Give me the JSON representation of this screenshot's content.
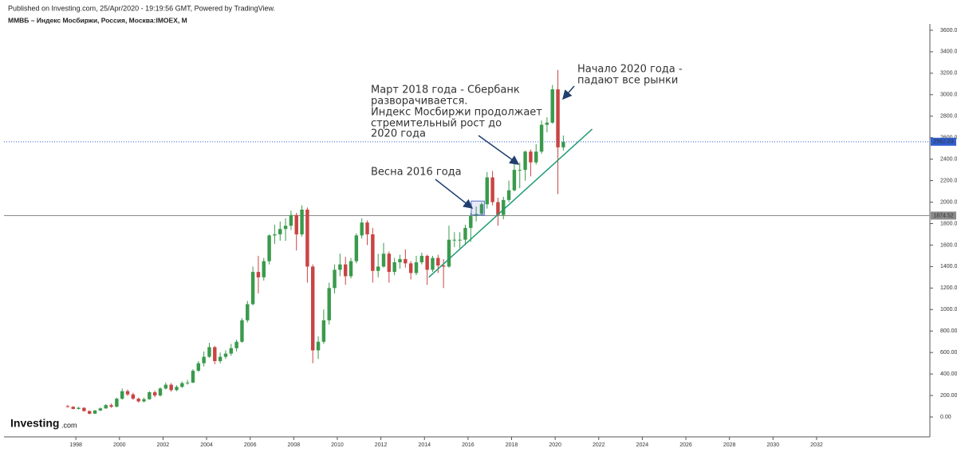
{
  "chart_data": {
    "type": "candlestick",
    "source": "Published on Investing.com, 25/Apr/2020 - 19:19:56 GMT, Powered by TradingView.",
    "title": "ММВБ – Индекс Мосбиржи, Россия, Москва:IMOEX, M",
    "logo": {
      "name": "Investing",
      "suffix": ".com"
    },
    "up_color": "#3a9a4c",
    "down_color": "#c94444",
    "xlim": [
      1994.7,
      2037.2
    ],
    "ylim": [
      -163,
      3659
    ],
    "xticks": [
      1998,
      2000,
      2002,
      2004,
      2006,
      2008,
      2010,
      2012,
      2014,
      2016,
      2018,
      2020,
      2022,
      2024,
      2026,
      2028,
      2030,
      2032
    ],
    "yticks": [
      {
        "value": 0,
        "label": "0.00"
      },
      {
        "value": 200,
        "label": "200.00"
      },
      {
        "value": 400,
        "label": "400.00"
      },
      {
        "value": 600,
        "label": "600.00"
      },
      {
        "value": 800,
        "label": "800.00"
      },
      {
        "value": 1000,
        "label": "1000.00"
      },
      {
        "value": 1200,
        "label": "1200.00"
      },
      {
        "value": 1400,
        "label": "1400.00"
      },
      {
        "value": 1600,
        "label": "1600.00"
      },
      {
        "value": 1800,
        "label": "1800.00"
      },
      {
        "value": 2000,
        "label": "2000.00"
      },
      {
        "value": 2200,
        "label": "2200.00"
      },
      {
        "value": 2400,
        "label": "2400.00"
      },
      {
        "value": 2600,
        "label": "2600.00"
      },
      {
        "value": 2800,
        "label": "2800.00"
      },
      {
        "value": 3000,
        "label": "3000.00"
      },
      {
        "value": 3200,
        "label": "3200.00"
      },
      {
        "value": 3400,
        "label": "3400.00"
      },
      {
        "value": 3600,
        "label": "3600.00"
      }
    ],
    "x": [
      1997.625,
      1997.875,
      1998.125,
      1998.375,
      1998.625,
      1998.875,
      1999.125,
      1999.375,
      1999.625,
      1999.875,
      2000.125,
      2000.375,
      2000.625,
      2000.875,
      2001.125,
      2001.375,
      2001.625,
      2001.875,
      2002.125,
      2002.375,
      2002.625,
      2002.875,
      2003.125,
      2003.375,
      2003.625,
      2003.875,
      2004.125,
      2004.375,
      2004.625,
      2004.875,
      2005.125,
      2005.375,
      2005.625,
      2005.875,
      2006.125,
      2006.375,
      2006.625,
      2006.875,
      2007.125,
      2007.375,
      2007.625,
      2007.875,
      2008.125,
      2008.375,
      2008.625,
      2008.875,
      2009.125,
      2009.375,
      2009.625,
      2009.875,
      2010.125,
      2010.375,
      2010.625,
      2010.875,
      2011.125,
      2011.375,
      2011.625,
      2011.875,
      2012.125,
      2012.375,
      2012.625,
      2012.875,
      2013.125,
      2013.375,
      2013.625,
      2013.875,
      2014.125,
      2014.375,
      2014.625,
      2014.875,
      2015.125,
      2015.375,
      2015.625,
      2015.875,
      2016.125,
      2016.375,
      2016.625,
      2016.875,
      2017.125,
      2017.375,
      2017.625,
      2017.875,
      2018.125,
      2018.375,
      2018.625,
      2018.875,
      2019.125,
      2019.375,
      2019.625,
      2019.875,
      2020.125,
      2020.375
    ],
    "open": [
      100,
      95,
      75,
      85,
      55,
      30,
      60,
      80,
      110,
      95,
      170,
      240,
      210,
      170,
      145,
      165,
      230,
      200,
      265,
      300,
      250,
      280,
      315,
      320,
      430,
      500,
      560,
      650,
      520,
      560,
      590,
      640,
      700,
      900,
      1050,
      1350,
      1300,
      1450,
      1690,
      1700,
      1750,
      1780,
      1880,
      1700,
      1930,
      1400,
      620,
      700,
      900,
      1200,
      1370,
      1420,
      1310,
      1450,
      1690,
      1810,
      1700,
      1360,
      1400,
      1520,
      1350,
      1440,
      1470,
      1430,
      1340,
      1440,
      1500,
      1370,
      1480,
      1410,
      1400,
      1650,
      1650,
      1650,
      1760,
      1870,
      1890,
      1980,
      2230,
      2000,
      1880,
      2020,
      2110,
      2300,
      2300,
      2470,
      2370,
      2470,
      2720,
      2740,
      3050,
      2510
    ],
    "high": [
      112,
      100,
      95,
      90,
      60,
      65,
      88,
      120,
      125,
      180,
      265,
      255,
      225,
      180,
      180,
      240,
      245,
      275,
      320,
      315,
      295,
      330,
      345,
      445,
      520,
      610,
      690,
      660,
      600,
      620,
      680,
      720,
      920,
      1080,
      1400,
      1500,
      1480,
      1700,
      1790,
      1820,
      1850,
      1920,
      1900,
      1970,
      1950,
      1420,
      750,
      1000,
      1250,
      1420,
      1520,
      1490,
      1480,
      1710,
      1850,
      1830,
      1760,
      1520,
      1620,
      1540,
      1480,
      1510,
      1560,
      1450,
      1500,
      1530,
      1510,
      1500,
      1510,
      1470,
      1780,
      1720,
      1720,
      1790,
      1900,
      1960,
      2000,
      2280,
      2290,
      2040,
      2050,
      2200,
      2380,
      2370,
      2480,
      2490,
      2540,
      2760,
      2790,
      3090,
      3230,
      2620
    ],
    "low": [
      88,
      70,
      68,
      50,
      25,
      28,
      55,
      75,
      85,
      90,
      160,
      195,
      160,
      135,
      135,
      160,
      185,
      190,
      255,
      235,
      240,
      270,
      300,
      315,
      420,
      470,
      550,
      490,
      500,
      540,
      570,
      610,
      690,
      880,
      1040,
      1150,
      1270,
      1420,
      1610,
      1640,
      1640,
      1740,
      1550,
      1680,
      1250,
      500,
      540,
      680,
      860,
      1150,
      1310,
      1230,
      1290,
      1430,
      1660,
      1600,
      1250,
      1300,
      1390,
      1250,
      1320,
      1380,
      1390,
      1280,
      1320,
      1420,
      1230,
      1350,
      1340,
      1200,
      1390,
      1580,
      1570,
      1600,
      1630,
      1820,
      1880,
      1940,
      1970,
      1780,
      1840,
      2000,
      2100,
      2130,
      2200,
      2240,
      2350,
      2450,
      2650,
      2730,
      2075,
      2480
    ],
    "close": [
      95,
      75,
      85,
      55,
      30,
      60,
      80,
      110,
      95,
      170,
      240,
      210,
      170,
      145,
      165,
      230,
      200,
      265,
      300,
      250,
      280,
      315,
      320,
      430,
      500,
      560,
      650,
      520,
      560,
      590,
      640,
      700,
      900,
      1050,
      1350,
      1300,
      1450,
      1690,
      1700,
      1750,
      1780,
      1880,
      1700,
      1930,
      1400,
      620,
      700,
      900,
      1200,
      1370,
      1420,
      1310,
      1450,
      1690,
      1810,
      1700,
      1360,
      1400,
      1520,
      1350,
      1440,
      1470,
      1430,
      1340,
      1440,
      1500,
      1370,
      1480,
      1410,
      1400,
      1650,
      1650,
      1650,
      1760,
      1870,
      1890,
      1980,
      2230,
      2000,
      1880,
      2020,
      2110,
      2300,
      2300,
      2470,
      2370,
      2470,
      2720,
      2740,
      3050,
      2510,
      2560
    ],
    "hlines": [
      {
        "value": 2562.03,
        "color": "#2f5fd0",
        "style": "dotted"
      },
      {
        "value": 1874.52,
        "color": "#8a8a8a",
        "style": "solid"
      }
    ],
    "trendline": {
      "x": [
        2014.2,
        2021.7
      ],
      "y": [
        1300,
        2680
      ],
      "color": "#1f9a75"
    },
    "box": {
      "x": [
        2016.15,
        2016.75
      ],
      "y": [
        1880,
        2010
      ],
      "color": "#5b6fcf"
    },
    "annotations": [
      {
        "lines": [
          "Весна 2016 года"
        ]
      },
      {
        "lines": [
          "Март 2018 года - Сбербанк",
          "разворачивается.",
          "Индекс Мосбиржи продолжает",
          "стремительный рост до",
          "2020 года"
        ]
      },
      {
        "lines": [
          "Начало 2020 года -",
          "падают все рынки"
        ]
      }
    ]
  }
}
